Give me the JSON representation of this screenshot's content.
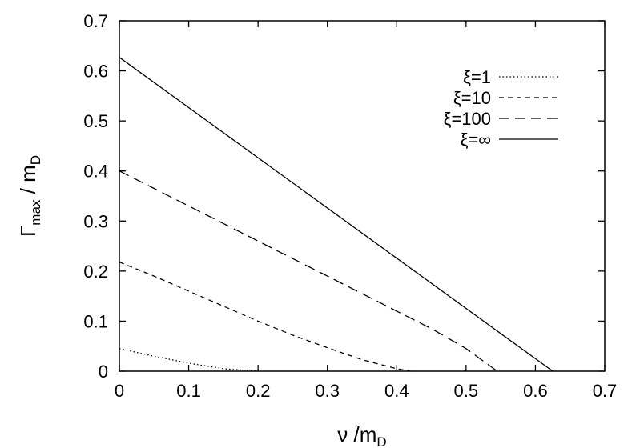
{
  "chart_data": {
    "type": "line",
    "xlabel": "ν /m",
    "xlabel_sub": "D",
    "ylabel_main": "Γ",
    "ylabel_sub1": "max",
    "ylabel_mid": " / m",
    "ylabel_sub2": "D",
    "xlim": [
      0,
      0.7
    ],
    "ylim": [
      0,
      0.7
    ],
    "xticks": [
      0,
      0.1,
      0.2,
      0.3,
      0.4,
      0.5,
      0.6,
      0.7
    ],
    "yticks": [
      0,
      0.1,
      0.2,
      0.3,
      0.4,
      0.5,
      0.6,
      0.7
    ],
    "xtick_labels": [
      "0",
      "0.1",
      "0.2",
      "0.3",
      "0.4",
      "0.5",
      "0.6",
      "0.7"
    ],
    "ytick_labels": [
      "0",
      "0.1",
      "0.2",
      "0.3",
      "0.4",
      "0.5",
      "0.6",
      "0.7"
    ],
    "grid": false,
    "legend_position": "top-right",
    "series": [
      {
        "name": "ξ=1",
        "style": "dotted",
        "x": [
          0,
          0.05,
          0.1,
          0.15,
          0.2
        ],
        "y": [
          0.045,
          0.03,
          0.016,
          0.005,
          0
        ]
      },
      {
        "name": "ξ=10",
        "style": "short-dash",
        "x": [
          0,
          0.05,
          0.1,
          0.15,
          0.2,
          0.25,
          0.3,
          0.35,
          0.4,
          0.42
        ],
        "y": [
          0.218,
          0.19,
          0.16,
          0.13,
          0.1,
          0.072,
          0.047,
          0.023,
          0.005,
          0
        ]
      },
      {
        "name": "ξ=100",
        "style": "long-dash",
        "x": [
          0,
          0.05,
          0.1,
          0.15,
          0.2,
          0.25,
          0.3,
          0.35,
          0.4,
          0.45,
          0.5,
          0.545
        ],
        "y": [
          0.4,
          0.365,
          0.33,
          0.295,
          0.26,
          0.225,
          0.19,
          0.155,
          0.12,
          0.085,
          0.045,
          0
        ]
      },
      {
        "name": "ξ=∞",
        "style": "solid",
        "x": [
          0,
          0.625
        ],
        "y": [
          0.627,
          0
        ]
      }
    ]
  }
}
